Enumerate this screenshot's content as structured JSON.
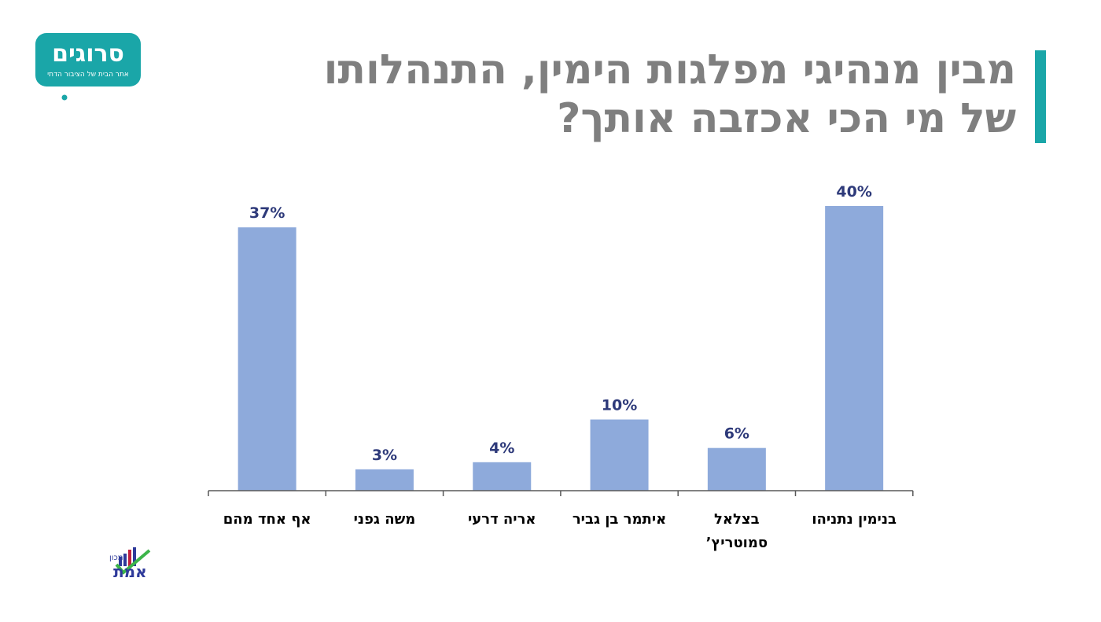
{
  "slide": {
    "title_line1": "מבין מנהיגי מפלגות הימין, התנהלותו",
    "title_line2": "של מי הכי אכזבה אותך?"
  },
  "logos": {
    "top": {
      "name": "סרוגים",
      "tagline": "אתר הבית של הציבור הדתי"
    },
    "bottom": {
      "prefix": "מכון",
      "name": "נתוני אמת"
    }
  },
  "colors": {
    "bar": "#8eaadb",
    "value_label": "#2e3a7a",
    "title": "#7f7f7f",
    "accent": "#1aa6a8",
    "axis": "#595959"
  },
  "chart_data": {
    "type": "bar",
    "categories": [
      "אף אחד מהם",
      "משה גפני",
      "אריה דרעי",
      "איתמר בן גביר",
      "בצלאל סמוטריץ’",
      "בנימין נתניהו"
    ],
    "category_lines": [
      [
        "אף אחד מהם"
      ],
      [
        "משה גפני"
      ],
      [
        "אריה דרעי"
      ],
      [
        "איתמר בן גביר"
      ],
      [
        "בצלאל",
        "סמוטריץ’"
      ],
      [
        "בנימין נתניהו"
      ]
    ],
    "values": [
      37,
      3,
      4,
      10,
      6,
      40
    ],
    "value_labels": [
      "37%",
      "3%",
      "4%",
      "10%",
      "6%",
      "40%"
    ],
    "ylim": [
      0,
      40
    ],
    "grid": false,
    "legend": "none"
  }
}
